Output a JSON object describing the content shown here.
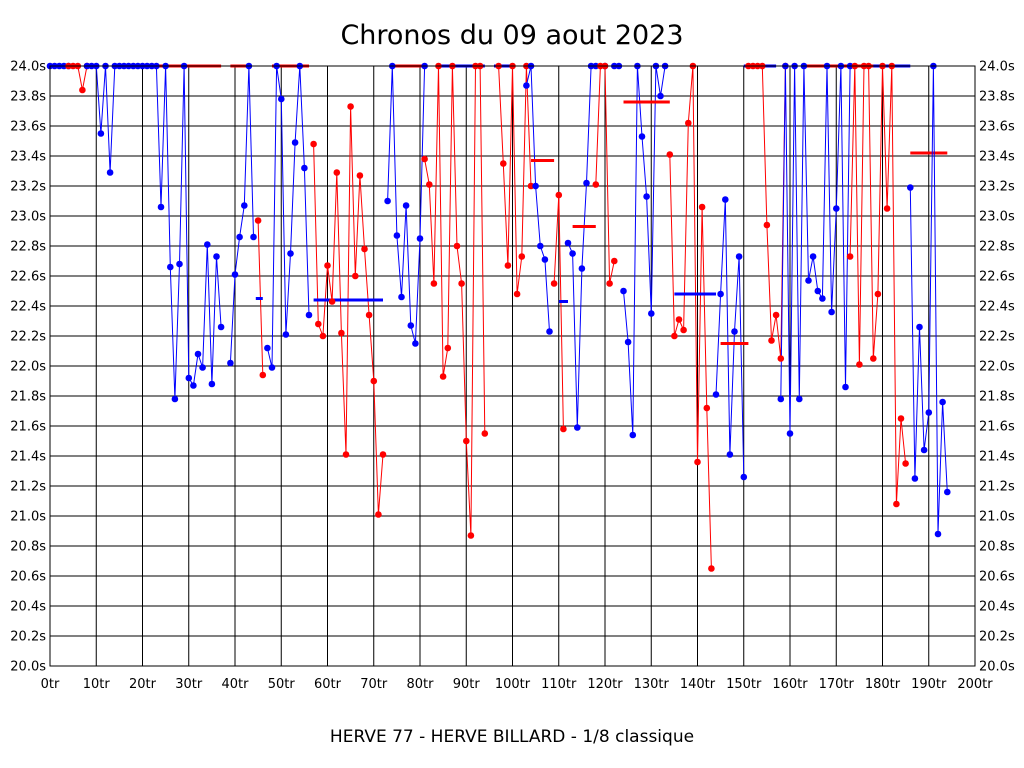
{
  "chart_data": {
    "type": "line",
    "title": "Chronos du 09 aout 2023",
    "footer": "HERVE 77 - HERVE BILLARD - 1/8 classique",
    "xlabel": "",
    "ylabel": "",
    "xlim": [
      0,
      200
    ],
    "ylim": [
      20.0,
      24.0
    ],
    "x_ticks": [
      "0tr",
      "10tr",
      "20tr",
      "30tr",
      "40tr",
      "50tr",
      "60tr",
      "70tr",
      "80tr",
      "90tr",
      "100tr",
      "110tr",
      "120tr",
      "130tr",
      "140tr",
      "150tr",
      "160tr",
      "170tr",
      "180tr",
      "190tr",
      "200tr"
    ],
    "y_ticks": [
      "20.0s",
      "20.2s",
      "20.4s",
      "20.6s",
      "20.8s",
      "21.0s",
      "21.2s",
      "21.4s",
      "21.6s",
      "21.8s",
      "22.0s",
      "22.2s",
      "22.4s",
      "22.6s",
      "22.8s",
      "23.0s",
      "23.2s",
      "23.4s",
      "23.6s",
      "23.8s",
      "24.0s"
    ],
    "grid": true,
    "colors": {
      "blue": "#0000ff",
      "red": "#ff0000"
    },
    "segments": [
      {
        "color": "blue",
        "points": [
          [
            0,
            24.0
          ],
          [
            1,
            24.0
          ],
          [
            2,
            24.0
          ],
          [
            3,
            24.0
          ],
          [
            4,
            24.0
          ]
        ]
      },
      {
        "color": "red",
        "points": [
          [
            4,
            24.0
          ],
          [
            5,
            24.0
          ],
          [
            6,
            24.0
          ],
          [
            7,
            23.84
          ],
          [
            8,
            24.0
          ]
        ]
      },
      {
        "color": "blue",
        "points": [
          [
            8,
            24.0
          ],
          [
            9,
            24.0
          ],
          [
            10,
            24.0
          ],
          [
            11,
            23.55
          ],
          [
            12,
            24.0
          ],
          [
            13,
            23.29
          ],
          [
            14,
            24.0
          ],
          [
            15,
            24.0
          ],
          [
            16,
            24.0
          ],
          [
            17,
            24.0
          ],
          [
            18,
            24.0
          ],
          [
            19,
            24.0
          ],
          [
            20,
            24.0
          ],
          [
            21,
            24.0
          ],
          [
            22,
            24.0
          ],
          [
            23,
            24.0
          ],
          [
            24,
            23.06
          ],
          [
            25,
            24.0
          ],
          [
            26,
            22.66
          ],
          [
            27,
            21.78
          ],
          [
            28,
            22.68
          ],
          [
            29,
            24.0
          ],
          [
            30,
            21.92
          ],
          [
            31,
            21.87
          ],
          [
            32,
            22.08
          ],
          [
            33,
            21.99
          ],
          [
            34,
            22.81
          ],
          [
            35,
            21.88
          ],
          [
            36,
            22.73
          ],
          [
            37,
            22.26
          ]
        ]
      },
      {
        "color": "red",
        "points": [
          [
            22,
            24.0
          ],
          [
            37,
            24.0
          ]
        ]
      },
      {
        "color": "blue",
        "points": [
          [
            39,
            22.02
          ],
          [
            40,
            22.61
          ],
          [
            41,
            22.86
          ],
          [
            42,
            23.07
          ],
          [
            43,
            24.0
          ],
          [
            44,
            22.86
          ]
        ]
      },
      {
        "color": "red",
        "points": [
          [
            39,
            24.0
          ],
          [
            43,
            24.0
          ]
        ]
      },
      {
        "color": "red",
        "points": [
          [
            45,
            22.97
          ],
          [
            46,
            21.94
          ]
        ]
      },
      {
        "color": "blue",
        "points": [
          [
            44.5,
            22.45
          ],
          [
            46,
            22.45
          ]
        ]
      },
      {
        "color": "blue",
        "points": [
          [
            47,
            22.12
          ],
          [
            48,
            21.99
          ],
          [
            49,
            24.0
          ],
          [
            50,
            23.78
          ],
          [
            51,
            22.21
          ],
          [
            52,
            22.75
          ],
          [
            53,
            23.49
          ],
          [
            54,
            24.0
          ],
          [
            55,
            23.32
          ],
          [
            56,
            22.34
          ]
        ]
      },
      {
        "color": "red",
        "points": [
          [
            48,
            24.0
          ],
          [
            56,
            24.0
          ]
        ]
      },
      {
        "color": "red",
        "points": [
          [
            57,
            23.48
          ],
          [
            58,
            22.28
          ],
          [
            59,
            22.2
          ],
          [
            60,
            22.67
          ],
          [
            61,
            22.43
          ],
          [
            62,
            23.29
          ],
          [
            63,
            22.22
          ],
          [
            64,
            21.41
          ],
          [
            65,
            23.73
          ],
          [
            66,
            22.6
          ],
          [
            67,
            23.27
          ],
          [
            68,
            22.78
          ],
          [
            69,
            22.34
          ],
          [
            70,
            21.9
          ],
          [
            71,
            21.01
          ],
          [
            72,
            21.41
          ]
        ]
      },
      {
        "color": "blue",
        "points": [
          [
            57,
            22.44
          ],
          [
            72,
            22.44
          ]
        ]
      },
      {
        "color": "blue",
        "points": [
          [
            73,
            23.1
          ],
          [
            74,
            24.0
          ],
          [
            75,
            22.87
          ],
          [
            76,
            22.46
          ],
          [
            77,
            23.07
          ],
          [
            78,
            22.27
          ],
          [
            79,
            22.15
          ],
          [
            80,
            22.85
          ],
          [
            81,
            24.0
          ]
        ]
      },
      {
        "color": "red",
        "points": [
          [
            74,
            24.0
          ],
          [
            81,
            24.0
          ]
        ]
      },
      {
        "color": "red",
        "points": [
          [
            81,
            23.38
          ],
          [
            82,
            23.21
          ],
          [
            83,
            22.55
          ],
          [
            84,
            24.0
          ],
          [
            85,
            21.93
          ],
          [
            86,
            22.12
          ],
          [
            87,
            24.0
          ],
          [
            88,
            22.8
          ],
          [
            89,
            22.55
          ],
          [
            90,
            21.5
          ],
          [
            91,
            20.87
          ],
          [
            92,
            24.0
          ],
          [
            93,
            24.0
          ],
          [
            94,
            21.55
          ]
        ]
      },
      {
        "color": "blue",
        "points": [
          [
            84,
            24.0
          ],
          [
            94,
            24.0
          ]
        ]
      },
      {
        "color": "red",
        "points": [
          [
            97,
            24.0
          ],
          [
            98,
            23.35
          ],
          [
            99,
            22.67
          ],
          [
            100,
            24.0
          ],
          [
            101,
            22.48
          ],
          [
            102,
            22.73
          ],
          [
            103,
            24.0
          ],
          [
            104,
            23.2
          ]
        ]
      },
      {
        "color": "blue",
        "points": [
          [
            96,
            24.0
          ],
          [
            100,
            24.0
          ]
        ]
      },
      {
        "color": "blue",
        "points": [
          [
            103,
            23.87
          ],
          [
            104,
            24.0
          ],
          [
            105,
            23.2
          ],
          [
            106,
            22.8
          ],
          [
            107,
            22.71
          ],
          [
            108,
            22.23
          ]
        ]
      },
      {
        "color": "red",
        "points": [
          [
            104,
            23.37
          ],
          [
            109,
            23.37
          ]
        ]
      },
      {
        "color": "red",
        "points": [
          [
            109,
            22.55
          ],
          [
            110,
            23.14
          ],
          [
            111,
            21.58
          ]
        ]
      },
      {
        "color": "blue",
        "points": [
          [
            110,
            22.43
          ],
          [
            112,
            22.43
          ]
        ]
      },
      {
        "color": "blue",
        "points": [
          [
            112,
            22.82
          ],
          [
            113,
            22.75
          ],
          [
            114,
            21.59
          ],
          [
            115,
            22.65
          ],
          [
            116,
            23.22
          ],
          [
            117,
            24.0
          ],
          [
            118,
            24.0
          ],
          [
            120,
            24.0
          ],
          [
            122,
            24.0
          ],
          [
            123,
            24.0
          ]
        ]
      },
      {
        "color": "red",
        "points": [
          [
            113,
            22.93
          ],
          [
            118,
            22.93
          ]
        ]
      },
      {
        "color": "red",
        "points": [
          [
            118,
            23.21
          ],
          [
            119,
            24.0
          ],
          [
            120,
            24.0
          ],
          [
            121,
            22.55
          ],
          [
            122,
            22.7
          ]
        ]
      },
      {
        "color": "blue",
        "points": [
          [
            124,
            22.5
          ],
          [
            125,
            22.16
          ],
          [
            126,
            21.54
          ],
          [
            127,
            24.0
          ],
          [
            128,
            23.53
          ],
          [
            129,
            23.13
          ],
          [
            130,
            22.35
          ],
          [
            131,
            24.0
          ],
          [
            132,
            23.8
          ],
          [
            133,
            24.0
          ]
        ]
      },
      {
        "color": "red",
        "points": [
          [
            124,
            23.76
          ],
          [
            134,
            23.76
          ]
        ]
      },
      {
        "color": "red",
        "points": [
          [
            134,
            23.41
          ],
          [
            135,
            22.2
          ],
          [
            136,
            22.31
          ],
          [
            137,
            22.24
          ],
          [
            138,
            23.62
          ],
          [
            139,
            24.0
          ],
          [
            140,
            21.36
          ],
          [
            141,
            23.06
          ],
          [
            142,
            21.72
          ],
          [
            143,
            20.65
          ]
        ]
      },
      {
        "color": "blue",
        "points": [
          [
            135,
            22.48
          ],
          [
            144,
            22.48
          ]
        ]
      },
      {
        "color": "blue",
        "points": [
          [
            144,
            21.81
          ],
          [
            145,
            22.48
          ],
          [
            146,
            23.11
          ],
          [
            147,
            21.41
          ],
          [
            148,
            22.23
          ],
          [
            149,
            22.73
          ],
          [
            150,
            21.26
          ]
        ]
      },
      {
        "color": "red",
        "points": [
          [
            145,
            22.15
          ],
          [
            151,
            22.15
          ]
        ]
      },
      {
        "color": "red",
        "points": [
          [
            151,
            24.0
          ],
          [
            152,
            24.0
          ],
          [
            153,
            24.0
          ],
          [
            154,
            24.0
          ],
          [
            155,
            22.94
          ],
          [
            156,
            22.17
          ],
          [
            157,
            22.34
          ],
          [
            158,
            22.05
          ],
          [
            159,
            24.0
          ]
        ]
      },
      {
        "color": "blue",
        "points": [
          [
            150,
            24.0
          ],
          [
            157,
            24.0
          ]
        ]
      },
      {
        "color": "blue",
        "points": [
          [
            158,
            21.78
          ],
          [
            159,
            24.0
          ],
          [
            160,
            21.55
          ],
          [
            161,
            24.0
          ],
          [
            162,
            21.78
          ],
          [
            163,
            24.0
          ],
          [
            164,
            22.57
          ],
          [
            165,
            22.73
          ],
          [
            166,
            22.5
          ],
          [
            167,
            22.45
          ],
          [
            168,
            24.0
          ],
          [
            169,
            22.36
          ],
          [
            170,
            23.05
          ],
          [
            171,
            24.0
          ],
          [
            172,
            21.86
          ],
          [
            173,
            24.0
          ]
        ]
      },
      {
        "color": "red",
        "points": [
          [
            163,
            24.0
          ],
          [
            185,
            24.0
          ]
        ]
      },
      {
        "color": "red",
        "points": [
          [
            173,
            22.73
          ],
          [
            174,
            24.0
          ],
          [
            175,
            22.01
          ],
          [
            176,
            24.0
          ],
          [
            177,
            24.0
          ],
          [
            178,
            22.05
          ],
          [
            179,
            22.48
          ],
          [
            180,
            24.0
          ],
          [
            181,
            23.05
          ],
          [
            182,
            24.0
          ],
          [
            183,
            21.08
          ],
          [
            184,
            21.65
          ],
          [
            185,
            21.35
          ]
        ]
      },
      {
        "color": "blue",
        "points": [
          [
            178,
            24.0
          ],
          [
            186,
            24.0
          ]
        ]
      },
      {
        "color": "red",
        "points": [
          [
            186,
            23.42
          ],
          [
            194,
            23.42
          ]
        ]
      },
      {
        "color": "blue",
        "points": [
          [
            186,
            23.19
          ],
          [
            187,
            21.25
          ],
          [
            188,
            22.26
          ],
          [
            189,
            21.44
          ],
          [
            190,
            21.69
          ],
          [
            191,
            24.0
          ],
          [
            192,
            20.88
          ],
          [
            193,
            21.76
          ],
          [
            194,
            21.16
          ]
        ]
      }
    ]
  }
}
